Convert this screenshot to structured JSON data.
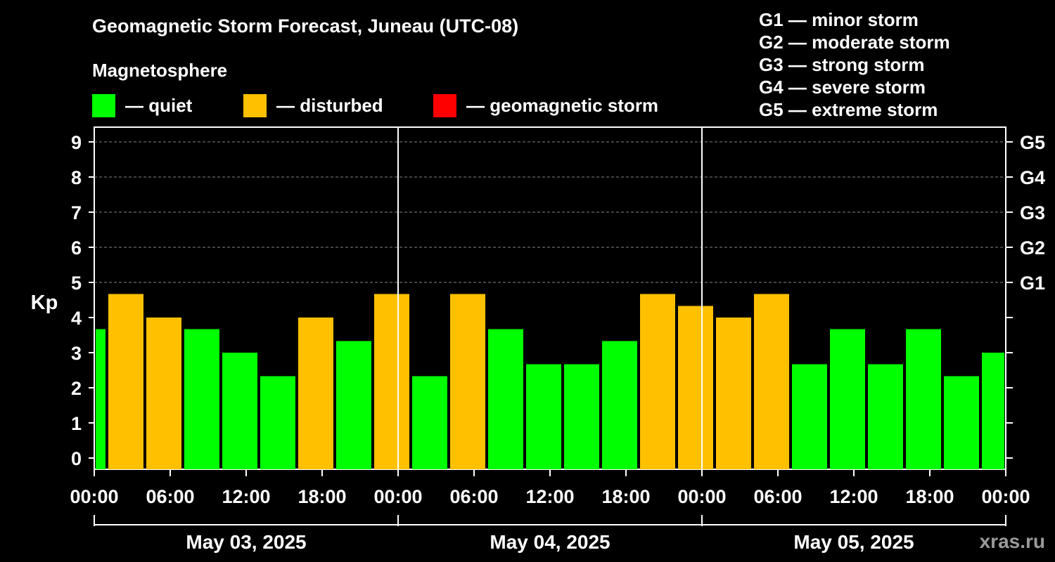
{
  "title": "Geomagnetic Storm Forecast, Juneau (UTC-08)",
  "subtitle": "Magnetosphere",
  "legend": [
    {
      "label": "— quiet",
      "color": "#00ff00"
    },
    {
      "label": "— disturbed",
      "color": "#ffc000"
    },
    {
      "label": "— geomagnetic storm",
      "color": "#ff0000"
    }
  ],
  "storm_levels": [
    "G1 — minor storm",
    "G2 — moderate storm",
    "G3 — strong storm",
    "G4 — severe storm",
    "G5 — extreme storm"
  ],
  "watermark": "xras.ru",
  "chart_data": {
    "type": "bar",
    "title": "Geomagnetic Storm Forecast, Juneau (UTC-08)",
    "ylabel": "Kp",
    "ylim": [
      0,
      9
    ],
    "yticks": [
      "0",
      "1",
      "2",
      "3",
      "4",
      "5",
      "6",
      "7",
      "8",
      "9"
    ],
    "right_ticks": [
      {
        "kp": 5,
        "label": "G1"
      },
      {
        "kp": 6,
        "label": "G2"
      },
      {
        "kp": 7,
        "label": "G3"
      },
      {
        "kp": 8,
        "label": "G4"
      },
      {
        "kp": 9,
        "label": "G5"
      }
    ],
    "x_hours_total": 72,
    "xtick_labels": [
      "00:00",
      "06:00",
      "12:00",
      "18:00",
      "00:00",
      "06:00",
      "12:00",
      "18:00",
      "00:00",
      "06:00",
      "12:00",
      "18:00",
      "00:00"
    ],
    "dates": [
      "May 03, 2025",
      "May 04, 2025",
      "May 05, 2025"
    ],
    "colors": {
      "quiet": "#00ff00",
      "disturbed": "#ffc000",
      "storm": "#ff0000",
      "grid": "#888888"
    },
    "bars": [
      {
        "start_hour": 0,
        "end_hour": 1,
        "kp": 3.67,
        "level": "quiet"
      },
      {
        "start_hour": 1,
        "end_hour": 4,
        "kp": 4.67,
        "level": "disturbed"
      },
      {
        "start_hour": 4,
        "end_hour": 7,
        "kp": 4.0,
        "level": "disturbed"
      },
      {
        "start_hour": 7,
        "end_hour": 10,
        "kp": 3.67,
        "level": "quiet"
      },
      {
        "start_hour": 10,
        "end_hour": 13,
        "kp": 3.0,
        "level": "quiet"
      },
      {
        "start_hour": 13,
        "end_hour": 16,
        "kp": 2.33,
        "level": "quiet"
      },
      {
        "start_hour": 16,
        "end_hour": 19,
        "kp": 4.0,
        "level": "disturbed"
      },
      {
        "start_hour": 19,
        "end_hour": 22,
        "kp": 3.33,
        "level": "quiet"
      },
      {
        "start_hour": 22,
        "end_hour": 25,
        "kp": 4.67,
        "level": "disturbed"
      },
      {
        "start_hour": 25,
        "end_hour": 28,
        "kp": 2.33,
        "level": "quiet"
      },
      {
        "start_hour": 28,
        "end_hour": 31,
        "kp": 4.67,
        "level": "disturbed"
      },
      {
        "start_hour": 31,
        "end_hour": 34,
        "kp": 3.67,
        "level": "quiet"
      },
      {
        "start_hour": 34,
        "end_hour": 37,
        "kp": 2.67,
        "level": "quiet"
      },
      {
        "start_hour": 37,
        "end_hour": 40,
        "kp": 2.67,
        "level": "quiet"
      },
      {
        "start_hour": 40,
        "end_hour": 43,
        "kp": 3.33,
        "level": "quiet"
      },
      {
        "start_hour": 43,
        "end_hour": 46,
        "kp": 4.67,
        "level": "disturbed"
      },
      {
        "start_hour": 46,
        "end_hour": 49,
        "kp": 4.33,
        "level": "disturbed"
      },
      {
        "start_hour": 49,
        "end_hour": 52,
        "kp": 4.0,
        "level": "disturbed"
      },
      {
        "start_hour": 52,
        "end_hour": 55,
        "kp": 4.67,
        "level": "disturbed"
      },
      {
        "start_hour": 55,
        "end_hour": 58,
        "kp": 2.67,
        "level": "quiet"
      },
      {
        "start_hour": 58,
        "end_hour": 61,
        "kp": 3.67,
        "level": "quiet"
      },
      {
        "start_hour": 61,
        "end_hour": 64,
        "kp": 2.67,
        "level": "quiet"
      },
      {
        "start_hour": 64,
        "end_hour": 67,
        "kp": 3.67,
        "level": "quiet"
      },
      {
        "start_hour": 67,
        "end_hour": 70,
        "kp": 2.33,
        "level": "quiet"
      },
      {
        "start_hour": 70,
        "end_hour": 72,
        "kp": 3.0,
        "level": "quiet"
      }
    ]
  }
}
